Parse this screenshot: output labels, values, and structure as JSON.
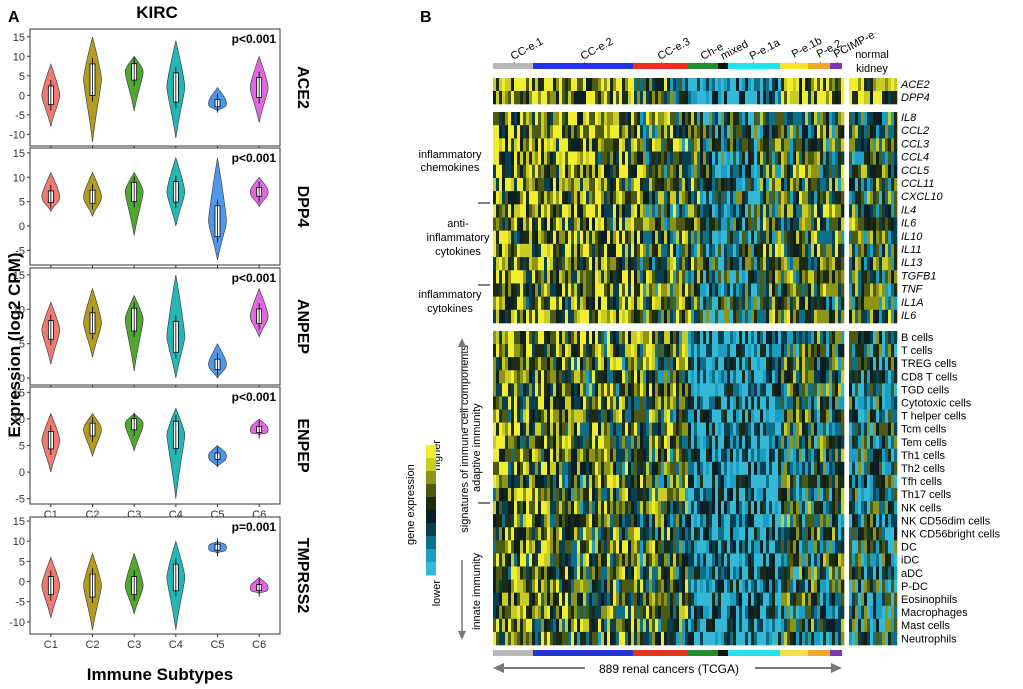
{
  "panel_a": {
    "letter": "A",
    "title": "KIRC",
    "ylabel": "Expression (log2 CPM)",
    "xlabel": "Immune Subtypes"
  },
  "panel_b": {
    "letter": "B",
    "subtype_labels": [
      "CC-e.1",
      "CC-e.2",
      "CC-e.3",
      "Ch-e",
      "mixed",
      "P-e.1a",
      "P-e.1b",
      "P-e.2",
      "PCIMP-e"
    ],
    "normal_label_1": "normal",
    "normal_label_2": "kidney",
    "bottom_label": "889 renal cancers (TCGA)",
    "group_labels": {
      "inflam_chemo_1": "inflammatory",
      "inflam_chemo_2": "chemokines",
      "anti_1": "anti-",
      "anti_2": "inflammatory",
      "anti_3": "cytokines",
      "inflam_cyto_1": "inflammatory",
      "inflam_cyto_2": "cytokines",
      "sig_1": "signatures of immune cell components",
      "adaptive": "adaptive immunity",
      "innate": "innate immunity"
    },
    "legend": {
      "title": "gene expression",
      "high": "higher",
      "low": "lower"
    },
    "genes_top": [
      "ACE2",
      "DPP4"
    ],
    "genes_mid": [
      "IL8",
      "CCL2",
      "CCL3",
      "CCL4",
      "CCL5",
      "CCL11",
      "CXCL10",
      "IL4",
      "IL6",
      "IL10",
      "IL11",
      "IL13",
      "TGFB1",
      "TNF",
      "IL1A",
      "IL6"
    ],
    "cells": [
      "B cells",
      "T cells",
      "TREG cells",
      "CD8 T cells",
      "TGD cells",
      "Cytotoxic cells",
      "T helper cells",
      "Tcm cells",
      "Tem cells",
      "Th1 cells",
      "Th2 cells",
      "Tfh cells",
      "Th17 cells",
      "NK cells",
      "NK CD56dim cells",
      "NK CD56bright cells",
      "DC",
      "iDC",
      "aDC",
      "P-DC",
      "Eosinophils",
      "Macrophages",
      "Mast cells",
      "Neutrophils"
    ]
  },
  "chart_data": [
    {
      "type": "violin",
      "gene": "ACE2",
      "pvalue": "p<0.001",
      "categories": [
        "C1",
        "C2",
        "C3",
        "C4",
        "C5",
        "C6"
      ],
      "medians": [
        0,
        4,
        6,
        2,
        -2,
        2
      ],
      "ranges": [
        [
          -8,
          8
        ],
        [
          -12,
          15
        ],
        [
          -4,
          10
        ],
        [
          -11,
          14
        ],
        [
          -4,
          2
        ],
        [
          -7,
          10
        ]
      ],
      "yticks": [
        15,
        10,
        5,
        0,
        -5,
        -10
      ],
      "ylim": [
        -13,
        17
      ],
      "colors": [
        "#ee7a74",
        "#b39a23",
        "#4fa732",
        "#25b7b5",
        "#4e97ec",
        "#df6ae0"
      ]
    },
    {
      "type": "violin",
      "gene": "DPP4",
      "pvalue": "p<0.001",
      "categories": [
        "C1",
        "C2",
        "C3",
        "C4",
        "C5",
        "C6"
      ],
      "medians": [
        6,
        6,
        7,
        7,
        1,
        7
      ],
      "ranges": [
        [
          3,
          11
        ],
        [
          2,
          11
        ],
        [
          -2,
          11
        ],
        [
          0,
          14
        ],
        [
          -7,
          14
        ],
        [
          4,
          10
        ]
      ],
      "yticks": [
        15,
        10,
        5,
        0,
        -5
      ],
      "ylim": [
        -8,
        16
      ],
      "colors": [
        "#ee7a74",
        "#b39a23",
        "#4fa732",
        "#25b7b5",
        "#4e97ec",
        "#df6ae0"
      ]
    },
    {
      "type": "violin",
      "gene": "ANPEP",
      "pvalue": "p<0.001",
      "categories": [
        "C1",
        "C2",
        "C3",
        "C4",
        "C5",
        "C6"
      ],
      "medians": [
        7,
        8,
        8.5,
        6,
        2,
        9
      ],
      "ranges": [
        [
          2,
          11
        ],
        [
          3,
          13
        ],
        [
          1,
          12
        ],
        [
          0,
          15
        ],
        [
          0,
          5
        ],
        [
          6,
          13
        ]
      ],
      "yticks": [
        15,
        10,
        5,
        0
      ],
      "ylim": [
        -1,
        16
      ],
      "colors": [
        "#ee7a74",
        "#b39a23",
        "#4fa732",
        "#25b7b5",
        "#4e97ec",
        "#df6ae0"
      ]
    },
    {
      "type": "violin",
      "gene": "ENPEP",
      "pvalue": "p<0.001",
      "categories": [
        "C1",
        "C2",
        "C3",
        "C4",
        "C5",
        "C6"
      ],
      "medians": [
        6,
        8,
        9,
        7,
        3,
        8
      ],
      "ranges": [
        [
          0,
          11
        ],
        [
          3,
          11
        ],
        [
          4,
          11
        ],
        [
          -5,
          12
        ],
        [
          1,
          5
        ],
        [
          7,
          10
        ]
      ],
      "yticks": [
        15,
        10,
        5,
        0,
        -5
      ],
      "ylim": [
        -6,
        16
      ],
      "colors": [
        "#ee7a74",
        "#b39a23",
        "#4fa732",
        "#25b7b5",
        "#4e97ec",
        "#df6ae0"
      ]
    },
    {
      "type": "violin",
      "gene": "TMPRSS2",
      "pvalue": "p=0.001",
      "categories": [
        "C1",
        "C2",
        "C3",
        "C4",
        "C5",
        "C6"
      ],
      "medians": [
        -1,
        -1,
        -1,
        1,
        8.5,
        -1.5
      ],
      "ranges": [
        [
          -9,
          6
        ],
        [
          -12,
          7
        ],
        [
          -8,
          7
        ],
        [
          -12,
          10
        ],
        [
          7,
          10
        ],
        [
          -3,
          1
        ]
      ],
      "yticks": [
        15,
        10,
        5,
        0,
        -5,
        -10
      ],
      "ylim": [
        -13,
        16
      ],
      "colors": [
        "#ee7a74",
        "#b39a23",
        "#4fa732",
        "#25b7b5",
        "#4e97ec",
        "#df6ae0"
      ]
    }
  ]
}
